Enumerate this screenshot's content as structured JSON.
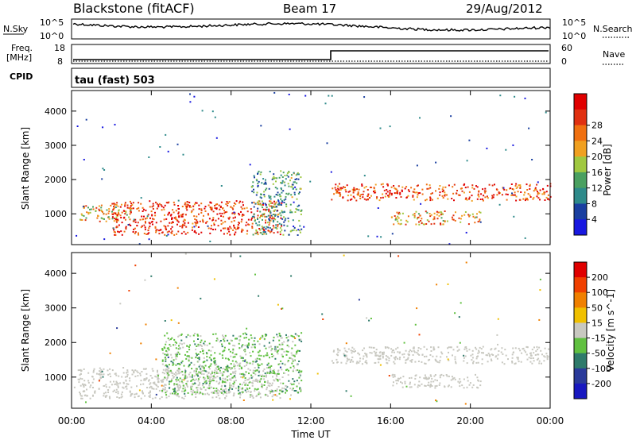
{
  "header": {
    "station": "Blackstone (fitACF)",
    "beam": "Beam 17",
    "date": "29/Aug/2012"
  },
  "sky_panel": {
    "left_label": "N.Sky",
    "right_label": "N.Search",
    "tick_top": "10^5",
    "tick_bottom": "10^0"
  },
  "freq_panel": {
    "left_label_1": "Freq.",
    "left_label_2": "[MHz]",
    "left_tick_top": "18",
    "left_tick_bottom": "8",
    "right_label": "Nave",
    "right_tick_top": "60",
    "right_tick_bottom": "0"
  },
  "cpid": {
    "label": "CPID",
    "value": "tau (fast) 503"
  },
  "x_axis": {
    "label": "Time UT",
    "ticks": [
      "00:00",
      "04:00",
      "08:00",
      "12:00",
      "16:00",
      "20:00",
      "00:00"
    ]
  },
  "colors": {
    "power_scale": [
      "#1818e0",
      "#1a3fa0",
      "#2e8a8a",
      "#4aa060",
      "#a0c840",
      "#f0a020",
      "#f07010",
      "#e03010",
      "#e00000"
    ],
    "velocity_scale": [
      "#1818c0",
      "#2a3a9a",
      "#2e7a6a",
      "#60c040",
      "#c8c8c0",
      "#f0c000",
      "#f08000",
      "#f04000",
      "#e00000"
    ],
    "ground_scatter": "#c8c8c0"
  },
  "chart_data": [
    {
      "type": "heatmap",
      "title": "Power",
      "xlabel": "Time UT",
      "ylabel": "Slant Range [km]",
      "xlim": [
        "00:00",
        "24:00"
      ],
      "ylim": [
        100,
        4600
      ],
      "y_ticks": [
        "1000",
        "2000",
        "3000",
        "4000"
      ],
      "colorbar": {
        "label": "Power [dB]",
        "ticks": [
          "4",
          "8",
          "12",
          "16",
          "20",
          "24",
          "28"
        ],
        "range": [
          0,
          30
        ]
      },
      "features": [
        {
          "hours": [
            0.3,
            3.0
          ],
          "range_km": [
            800,
            1300
          ],
          "level_db": 18
        },
        {
          "hours": [
            2.0,
            10.5
          ],
          "range_km": [
            400,
            1400
          ],
          "level_db": 26
        },
        {
          "hours": [
            9.0,
            11.5
          ],
          "range_km": [
            400,
            2300
          ],
          "level_db": 10
        },
        {
          "hours": [
            13.0,
            24.0
          ],
          "range_km": [
            1400,
            1900
          ],
          "level_db": 24
        },
        {
          "hours": [
            16.0,
            20.5
          ],
          "range_km": [
            700,
            1100
          ],
          "level_db": 20
        }
      ]
    },
    {
      "type": "heatmap",
      "title": "Velocity",
      "xlabel": "Time UT",
      "ylabel": "Slant Range [km]",
      "xlim": [
        "00:00",
        "24:00"
      ],
      "ylim": [
        100,
        4600
      ],
      "y_ticks": [
        "1000",
        "2000",
        "3000",
        "4000"
      ],
      "colorbar": {
        "label": "Velocity [m s^-1]",
        "ticks": [
          "200",
          "100",
          "50",
          "15",
          "-15",
          "-50",
          "-100",
          "-200"
        ],
        "range": [
          -250,
          250
        ]
      },
      "features": [
        {
          "hours": [
            0.3,
            10.5
          ],
          "range_km": [
            400,
            1300
          ],
          "velocity": 0,
          "kind": "ground scatter"
        },
        {
          "hours": [
            4.5,
            11.5
          ],
          "range_km": [
            500,
            2300
          ],
          "velocity": 30
        },
        {
          "hours": [
            13.0,
            24.0
          ],
          "range_km": [
            1400,
            1900
          ],
          "velocity": 0,
          "kind": "ground scatter"
        },
        {
          "hours": [
            16.0,
            20.5
          ],
          "range_km": [
            700,
            1100
          ],
          "velocity": 0,
          "kind": "ground scatter"
        }
      ]
    }
  ]
}
